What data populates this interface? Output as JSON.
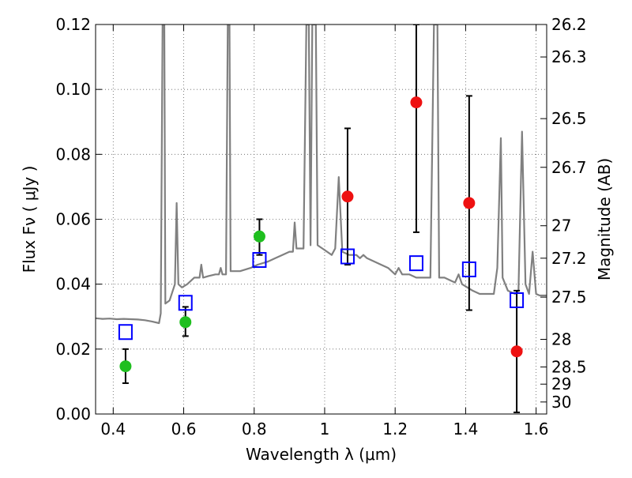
{
  "chart_data": {
    "type": "scatter",
    "xlabel": "Wavelength  λ (μm)",
    "ylabel": "Flux  Fν  ( μJy )",
    "y2label": "Magnitude (AB)",
    "xlim": [
      0.35,
      1.63
    ],
    "ylim": [
      0.0,
      0.12
    ],
    "grid": true,
    "x_ticks": [
      0.4,
      0.6,
      0.8,
      1.0,
      1.2,
      1.4,
      1.6
    ],
    "x_tick_labels": [
      "0.4",
      "0.6",
      "0.8",
      "1",
      "1.2",
      "1.4",
      "1.6"
    ],
    "y_ticks": [
      0.0,
      0.02,
      0.04,
      0.06,
      0.08,
      0.1,
      0.12
    ],
    "y_tick_labels": [
      "0.00",
      "0.02",
      "0.04",
      "0.06",
      "0.08",
      "0.10",
      "0.12"
    ],
    "y2_ticks": [
      {
        "label": "26.2",
        "flux": 0.12
      },
      {
        "label": "26.3",
        "flux": 0.11
      },
      {
        "label": "26.5",
        "flux": 0.091
      },
      {
        "label": "26.7",
        "flux": 0.076
      },
      {
        "label": "27",
        "flux": 0.058
      },
      {
        "label": "27.2",
        "flux": 0.048
      },
      {
        "label": "27.5",
        "flux": 0.036
      },
      {
        "label": "28",
        "flux": 0.023
      },
      {
        "label": "28.5",
        "flux": 0.0145
      },
      {
        "label": "29",
        "flux": 0.0092
      },
      {
        "label": "30",
        "flux": 0.0037
      }
    ],
    "colors": {
      "model": "#808080",
      "green": "#1fbf1f",
      "red": "#ee1111",
      "square": "#0000ff",
      "errorbar": "#000000",
      "grid": "#606060"
    },
    "series": [
      {
        "kind": "model-spectrum",
        "points": [
          [
            0.35,
            0.0295
          ],
          [
            0.37,
            0.0293
          ],
          [
            0.39,
            0.0294
          ],
          [
            0.41,
            0.0292
          ],
          [
            0.43,
            0.0293
          ],
          [
            0.45,
            0.0292
          ],
          [
            0.47,
            0.0291
          ],
          [
            0.49,
            0.0289
          ],
          [
            0.51,
            0.0285
          ],
          [
            0.53,
            0.028
          ],
          [
            0.535,
            0.031
          ],
          [
            0.54,
            0.12
          ],
          [
            0.545,
            0.12
          ],
          [
            0.548,
            0.034
          ],
          [
            0.56,
            0.035
          ],
          [
            0.575,
            0.04
          ],
          [
            0.58,
            0.065
          ],
          [
            0.585,
            0.04
          ],
          [
            0.595,
            0.039
          ],
          [
            0.61,
            0.04
          ],
          [
            0.63,
            0.042
          ],
          [
            0.645,
            0.042
          ],
          [
            0.65,
            0.046
          ],
          [
            0.655,
            0.042
          ],
          [
            0.67,
            0.0425
          ],
          [
            0.69,
            0.043
          ],
          [
            0.7,
            0.043
          ],
          [
            0.705,
            0.045
          ],
          [
            0.71,
            0.043
          ],
          [
            0.72,
            0.043
          ],
          [
            0.725,
            0.12
          ],
          [
            0.73,
            0.12
          ],
          [
            0.733,
            0.044
          ],
          [
            0.76,
            0.044
          ],
          [
            0.79,
            0.045
          ],
          [
            0.81,
            0.046
          ],
          [
            0.84,
            0.047
          ],
          [
            0.86,
            0.048
          ],
          [
            0.88,
            0.049
          ],
          [
            0.9,
            0.05
          ],
          [
            0.91,
            0.05
          ],
          [
            0.915,
            0.059
          ],
          [
            0.92,
            0.051
          ],
          [
            0.94,
            0.051
          ],
          [
            0.948,
            0.12
          ],
          [
            0.955,
            0.12
          ],
          [
            0.96,
            0.052
          ],
          [
            0.965,
            0.12
          ],
          [
            0.975,
            0.12
          ],
          [
            0.98,
            0.052
          ],
          [
            1.0,
            0.0505
          ],
          [
            1.02,
            0.049
          ],
          [
            1.03,
            0.051
          ],
          [
            1.04,
            0.073
          ],
          [
            1.05,
            0.05
          ],
          [
            1.07,
            0.049
          ],
          [
            1.09,
            0.049
          ],
          [
            1.1,
            0.048
          ],
          [
            1.11,
            0.049
          ],
          [
            1.12,
            0.048
          ],
          [
            1.14,
            0.047
          ],
          [
            1.16,
            0.046
          ],
          [
            1.18,
            0.045
          ],
          [
            1.2,
            0.043
          ],
          [
            1.21,
            0.045
          ],
          [
            1.22,
            0.043
          ],
          [
            1.24,
            0.043
          ],
          [
            1.26,
            0.042
          ],
          [
            1.28,
            0.042
          ],
          [
            1.3,
            0.042
          ],
          [
            1.31,
            0.12
          ],
          [
            1.32,
            0.12
          ],
          [
            1.325,
            0.042
          ],
          [
            1.34,
            0.042
          ],
          [
            1.36,
            0.041
          ],
          [
            1.37,
            0.0405
          ],
          [
            1.38,
            0.043
          ],
          [
            1.39,
            0.04
          ],
          [
            1.42,
            0.038
          ],
          [
            1.44,
            0.037
          ],
          [
            1.46,
            0.037
          ],
          [
            1.48,
            0.037
          ],
          [
            1.49,
            0.045
          ],
          [
            1.5,
            0.085
          ],
          [
            1.505,
            0.042
          ],
          [
            1.52,
            0.038
          ],
          [
            1.54,
            0.037
          ],
          [
            1.55,
            0.038
          ],
          [
            1.56,
            0.087
          ],
          [
            1.57,
            0.04
          ],
          [
            1.58,
            0.037
          ],
          [
            1.59,
            0.05
          ],
          [
            1.6,
            0.037
          ],
          [
            1.61,
            0.0365
          ],
          [
            1.63,
            0.0365
          ]
        ]
      },
      {
        "kind": "green-circles",
        "points": [
          {
            "x": 0.435,
            "y": 0.0147,
            "err_lo": 0.0095,
            "err_hi": 0.02
          },
          {
            "x": 0.605,
            "y": 0.0283,
            "err_lo": 0.024,
            "err_hi": 0.033
          },
          {
            "x": 0.815,
            "y": 0.0547,
            "err_lo": 0.049,
            "err_hi": 0.06
          }
        ]
      },
      {
        "kind": "red-circles",
        "points": [
          {
            "x": 1.065,
            "y": 0.067,
            "err_lo": 0.046,
            "err_hi": 0.088
          },
          {
            "x": 1.26,
            "y": 0.096,
            "err_lo": 0.056,
            "err_hi": 0.12
          },
          {
            "x": 1.41,
            "y": 0.065,
            "err_lo": 0.032,
            "err_hi": 0.098
          },
          {
            "x": 1.545,
            "y": 0.0193,
            "err_lo": 0.0005,
            "err_hi": 0.038
          }
        ]
      },
      {
        "kind": "blue-squares",
        "points": [
          {
            "x": 0.435,
            "y": 0.0255
          },
          {
            "x": 0.605,
            "y": 0.0345
          },
          {
            "x": 0.815,
            "y": 0.0477
          },
          {
            "x": 1.065,
            "y": 0.0488
          },
          {
            "x": 1.26,
            "y": 0.0467
          },
          {
            "x": 1.41,
            "y": 0.0448
          },
          {
            "x": 1.545,
            "y": 0.0353
          }
        ]
      }
    ]
  }
}
